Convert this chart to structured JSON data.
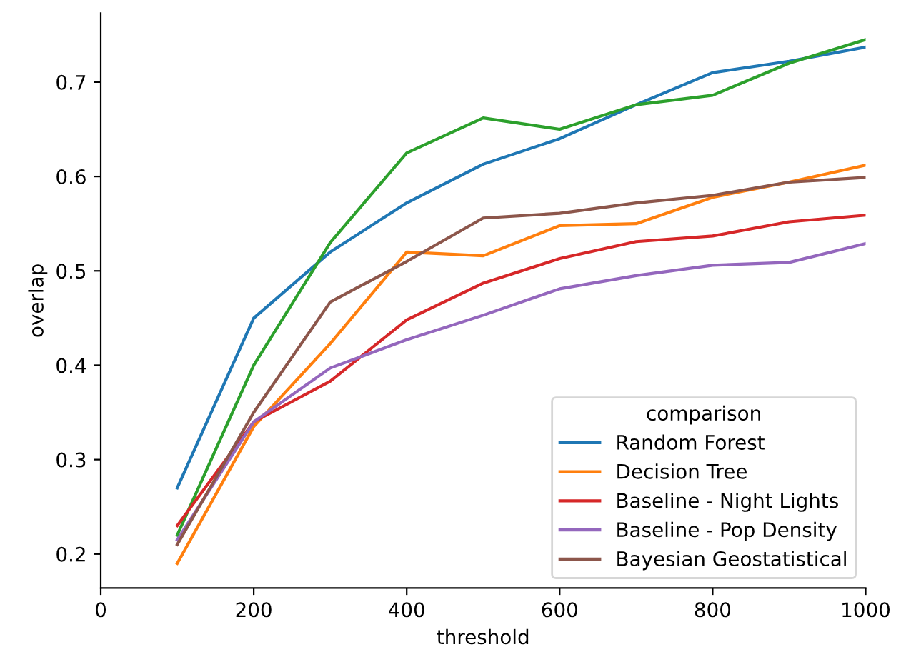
{
  "chart_data": {
    "type": "line",
    "xlabel": "threshold",
    "ylabel": "overlap",
    "legend_title": "comparison",
    "legend": "lower right",
    "grid": false,
    "marker": "none",
    "line_style": "solid",
    "x": [
      100,
      200,
      300,
      400,
      500,
      600,
      700,
      800,
      900,
      1000
    ],
    "xlim": [
      0,
      1000
    ],
    "xticks": [
      0,
      200,
      400,
      600,
      800,
      1000
    ],
    "ylim": [
      0.164,
      0.773
    ],
    "yticks": [
      0.2,
      0.3,
      0.4,
      0.5,
      0.6,
      0.7
    ],
    "series": [
      {
        "name": "Random Forest",
        "color": "#1f77b4",
        "values": [
          0.27,
          0.45,
          0.52,
          0.572,
          0.613,
          0.64,
          0.676,
          0.71,
          0.722,
          0.737
        ]
      },
      {
        "name": "Decision Tree",
        "color": "#ff7f0e",
        "values": [
          0.19,
          0.335,
          0.423,
          0.52,
          0.516,
          0.548,
          0.55,
          0.578,
          0.594,
          0.612
        ]
      },
      {
        "color": "#2ca02c",
        "values": [
          0.22,
          0.4,
          0.53,
          0.625,
          0.662,
          0.65,
          0.676,
          0.686,
          0.72,
          0.745
        ]
      },
      {
        "name": "Baseline - Night Lights",
        "color": "#d62728",
        "values": [
          0.23,
          0.34,
          0.383,
          0.448,
          0.487,
          0.513,
          0.531,
          0.537,
          0.552,
          0.559
        ]
      },
      {
        "name": "Baseline - Pop Density",
        "color": "#9467bd",
        "values": [
          0.215,
          0.34,
          0.397,
          0.427,
          0.453,
          0.481,
          0.495,
          0.506,
          0.509,
          0.529
        ]
      },
      {
        "name": "Bayesian Geostatistical",
        "color": "#8c564b",
        "values": [
          0.21,
          0.35,
          0.467,
          0.51,
          0.556,
          0.561,
          0.572,
          0.58,
          0.594,
          0.599
        ]
      }
    ]
  }
}
